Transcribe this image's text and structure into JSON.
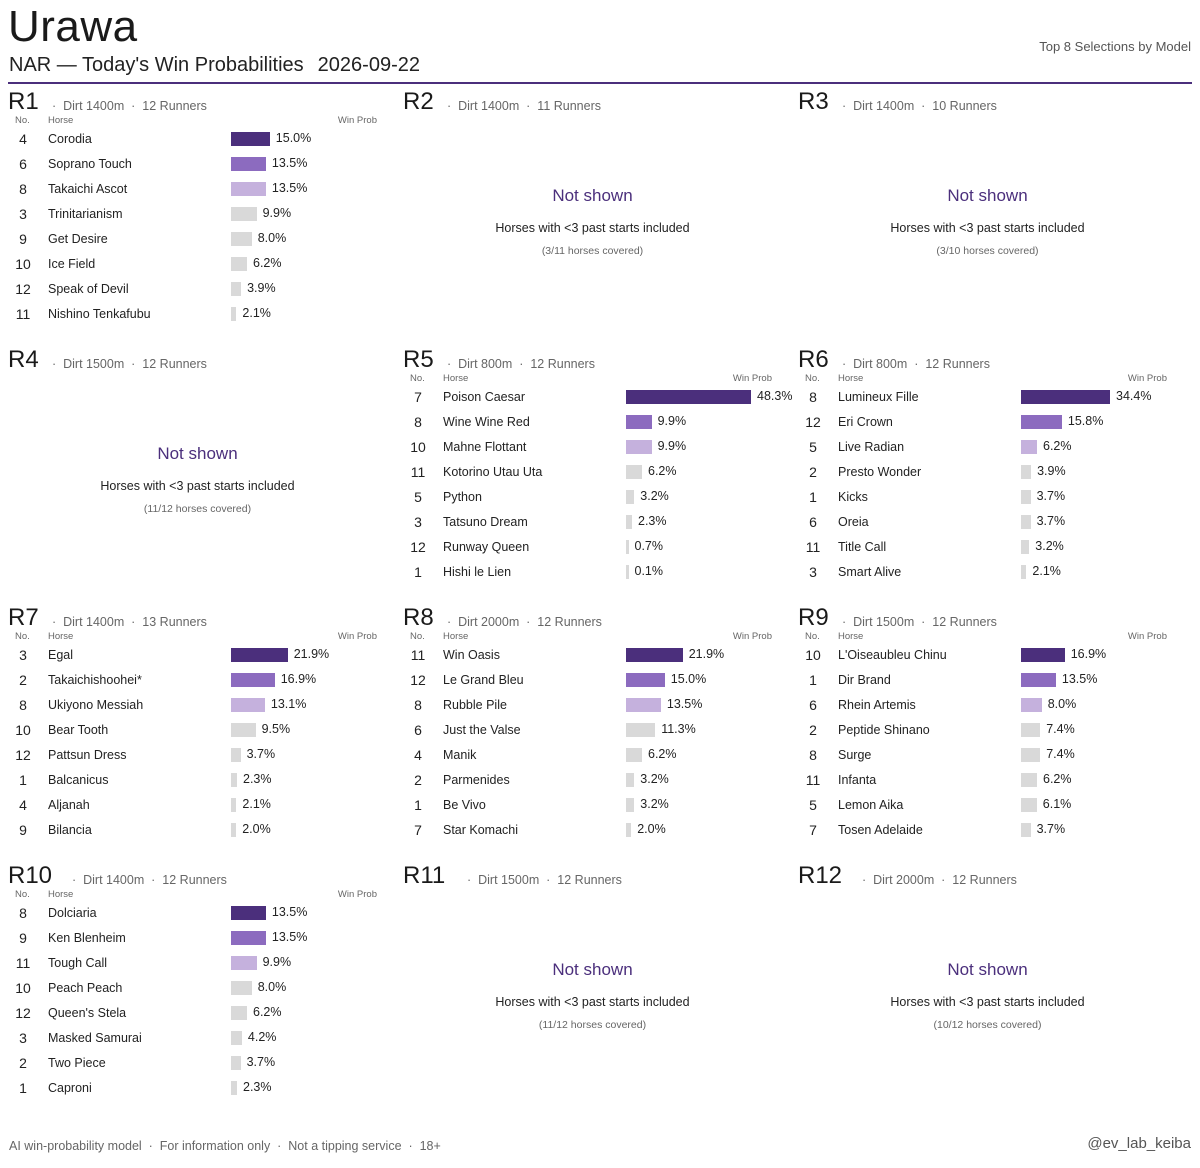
{
  "header": {
    "venue": "Urawa",
    "subtitle": "NAR — Today's Win Probabilities",
    "date": "2026-09-22",
    "top_right": "Top 8 Selections by Model"
  },
  "colors": {
    "accent": "#4b2f7c",
    "rank1": "#4b2f7c",
    "rank2": "#8c6bbf",
    "rank3": "#c5b1dd",
    "rest": "#d9d9d9"
  },
  "labels": {
    "no": "No.",
    "horse": "Horse",
    "prob": "Win Prob"
  },
  "not_shown": {
    "title": "Not shown",
    "subtitle": "Horses with <3 past starts included"
  },
  "footer": {
    "left": "AI win-probability model  ·  For information only  ·  Not a tipping service  ·  18+",
    "right": "@ev_lab_keiba"
  },
  "chart_data": {
    "type": "bar",
    "xlabel": "Win Prob",
    "xlim": [
      0,
      48.3
    ],
    "races": [
      {
        "race": "R1",
        "meta": "·  Dirt 1400m  ·  12 Runners",
        "shown": true,
        "runners": [
          {
            "no": "4",
            "horse": "Corodia",
            "prob": 15.0
          },
          {
            "no": "6",
            "horse": "Soprano Touch",
            "prob": 13.5
          },
          {
            "no": "8",
            "horse": "Takaichi Ascot",
            "prob": 13.5
          },
          {
            "no": "3",
            "horse": "Trinitarianism",
            "prob": 9.9
          },
          {
            "no": "9",
            "horse": "Get Desire",
            "prob": 8.0
          },
          {
            "no": "10",
            "horse": "Ice Field",
            "prob": 6.2
          },
          {
            "no": "12",
            "horse": "Speak of Devil",
            "prob": 3.9
          },
          {
            "no": "11",
            "horse": "Nishino Tenkafubu",
            "prob": 2.1
          }
        ]
      },
      {
        "race": "R2",
        "meta": "·  Dirt 1400m  ·  11 Runners",
        "shown": false,
        "coverage": "(3/11 horses covered)"
      },
      {
        "race": "R3",
        "meta": "·  Dirt 1400m  ·  10 Runners",
        "shown": false,
        "coverage": "(3/10 horses covered)"
      },
      {
        "race": "R4",
        "meta": "·  Dirt 1500m  ·  12 Runners",
        "shown": false,
        "coverage": "(11/12 horses covered)"
      },
      {
        "race": "R5",
        "meta": "·  Dirt 800m  ·  12 Runners",
        "shown": true,
        "runners": [
          {
            "no": "7",
            "horse": "Poison Caesar",
            "prob": 48.3
          },
          {
            "no": "8",
            "horse": "Wine Wine Red",
            "prob": 9.9
          },
          {
            "no": "10",
            "horse": "Mahne Flottant",
            "prob": 9.9
          },
          {
            "no": "11",
            "horse": "Kotorino Utau Uta",
            "prob": 6.2
          },
          {
            "no": "5",
            "horse": "Python",
            "prob": 3.2
          },
          {
            "no": "3",
            "horse": "Tatsuno Dream",
            "prob": 2.3
          },
          {
            "no": "12",
            "horse": "Runway Queen",
            "prob": 0.7
          },
          {
            "no": "1",
            "horse": "Hishi le Lien",
            "prob": 0.1
          }
        ]
      },
      {
        "race": "R6",
        "meta": "·  Dirt 800m  ·  12 Runners",
        "shown": true,
        "runners": [
          {
            "no": "8",
            "horse": "Lumineux Fille",
            "prob": 34.4
          },
          {
            "no": "12",
            "horse": "Eri Crown",
            "prob": 15.8
          },
          {
            "no": "5",
            "horse": "Live Radian",
            "prob": 6.2
          },
          {
            "no": "2",
            "horse": "Presto Wonder",
            "prob": 3.9
          },
          {
            "no": "1",
            "horse": "Kicks",
            "prob": 3.7
          },
          {
            "no": "6",
            "horse": "Oreia",
            "prob": 3.7
          },
          {
            "no": "11",
            "horse": "Title Call",
            "prob": 3.2
          },
          {
            "no": "3",
            "horse": "Smart Alive",
            "prob": 2.1
          }
        ]
      },
      {
        "race": "R7",
        "meta": "·  Dirt 1400m  ·  13 Runners",
        "shown": true,
        "runners": [
          {
            "no": "3",
            "horse": "Egal",
            "prob": 21.9
          },
          {
            "no": "2",
            "horse": "Takaichishoohei*",
            "prob": 16.9
          },
          {
            "no": "8",
            "horse": "Ukiyono Messiah",
            "prob": 13.1
          },
          {
            "no": "10",
            "horse": "Bear Tooth",
            "prob": 9.5
          },
          {
            "no": "12",
            "horse": "Pattsun Dress",
            "prob": 3.7
          },
          {
            "no": "1",
            "horse": "Balcanicus",
            "prob": 2.3
          },
          {
            "no": "4",
            "horse": "Aljanah",
            "prob": 2.1
          },
          {
            "no": "9",
            "horse": "Bilancia",
            "prob": 2.0
          }
        ]
      },
      {
        "race": "R8",
        "meta": "·  Dirt 2000m  ·  12 Runners",
        "shown": true,
        "runners": [
          {
            "no": "11",
            "horse": "Win Oasis",
            "prob": 21.9
          },
          {
            "no": "12",
            "horse": "Le Grand Bleu",
            "prob": 15.0
          },
          {
            "no": "8",
            "horse": "Rubble Pile",
            "prob": 13.5
          },
          {
            "no": "6",
            "horse": "Just the Valse",
            "prob": 11.3
          },
          {
            "no": "4",
            "horse": "Manik",
            "prob": 6.2
          },
          {
            "no": "2",
            "horse": "Parmenides",
            "prob": 3.2
          },
          {
            "no": "1",
            "horse": "Be Vivo",
            "prob": 3.2
          },
          {
            "no": "7",
            "horse": "Star Komachi",
            "prob": 2.0
          }
        ]
      },
      {
        "race": "R9",
        "meta": "·  Dirt 1500m  ·  12 Runners",
        "shown": true,
        "runners": [
          {
            "no": "10",
            "horse": "L'Oiseaubleu Chinu",
            "prob": 16.9
          },
          {
            "no": "1",
            "horse": "Dir Brand",
            "prob": 13.5
          },
          {
            "no": "6",
            "horse": "Rhein Artemis",
            "prob": 8.0
          },
          {
            "no": "2",
            "horse": "Peptide Shinano",
            "prob": 7.4
          },
          {
            "no": "8",
            "horse": "Surge",
            "prob": 7.4
          },
          {
            "no": "11",
            "horse": "Infanta",
            "prob": 6.2
          },
          {
            "no": "5",
            "horse": "Lemon Aika",
            "prob": 6.1
          },
          {
            "no": "7",
            "horse": "Tosen Adelaide",
            "prob": 3.7
          }
        ]
      },
      {
        "race": "R10",
        "meta": "·  Dirt 1400m  ·  12 Runners",
        "shown": true,
        "runners": [
          {
            "no": "8",
            "horse": "Dolciaria",
            "prob": 13.5
          },
          {
            "no": "9",
            "horse": "Ken Blenheim",
            "prob": 13.5
          },
          {
            "no": "11",
            "horse": "Tough Call",
            "prob": 9.9
          },
          {
            "no": "10",
            "horse": "Peach Peach",
            "prob": 8.0
          },
          {
            "no": "12",
            "horse": "Queen's Stela",
            "prob": 6.2
          },
          {
            "no": "3",
            "horse": "Masked Samurai",
            "prob": 4.2
          },
          {
            "no": "2",
            "horse": "Two Piece",
            "prob": 3.7
          },
          {
            "no": "1",
            "horse": "Caproni",
            "prob": 2.3
          }
        ]
      },
      {
        "race": "R11",
        "meta": "·  Dirt 1500m  ·  12 Runners",
        "shown": false,
        "coverage": "(11/12 horses covered)"
      },
      {
        "race": "R12",
        "meta": "·  Dirt 2000m  ·  12 Runners",
        "shown": false,
        "coverage": "(10/12 horses covered)"
      }
    ]
  }
}
